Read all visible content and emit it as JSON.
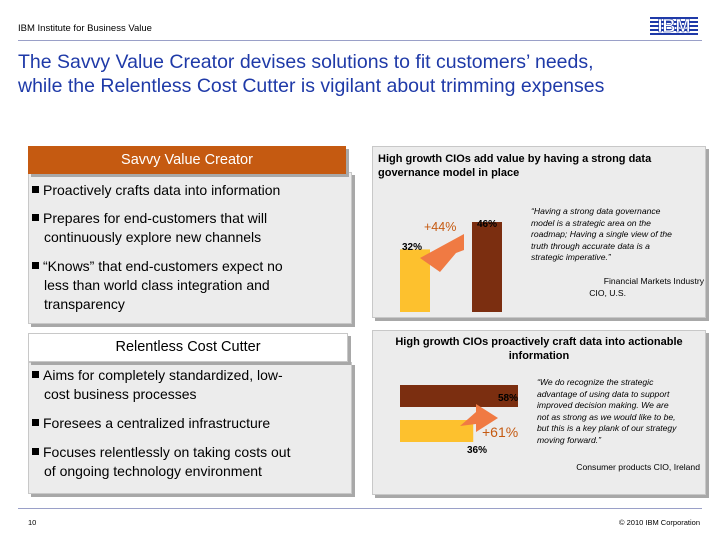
{
  "header": {
    "org": "IBM Institute for Business Value",
    "logo": "IBM"
  },
  "title": {
    "line1": "The Savvy Value Creator devises solutions to fit customers’ needs,",
    "line2": "while the Relentless Cost Cutter is vigilant about trimming expenses"
  },
  "savvy": {
    "heading": "Savvy Value Creator",
    "bullets": [
      {
        "l1": "Proactively crafts data into information",
        "l2": "",
        "l3": ""
      },
      {
        "l1": "Prepares for end-customers that will",
        "l2": "continuously explore new channels",
        "l3": ""
      },
      {
        "l1": "“Knows” that end-customers expect no",
        "l2": "less than world class integration and",
        "l3": "transparency"
      }
    ]
  },
  "cutter": {
    "heading": "Relentless Cost Cutter",
    "bullets": [
      {
        "l1": "Aims for completely standardized, low-",
        "l2": "cost business processes"
      },
      {
        "l1": "Foresees a centralized infrastructure",
        "l2": ""
      },
      {
        "l1": "Focuses relentlessly on taking costs out",
        "l2": "of ongoing technology environment"
      }
    ]
  },
  "panel_top": {
    "heading_l1": "High growth CIOs add value by having a strong data",
    "heading_l2": "governance model in place",
    "growth": "+44%",
    "low_value_label": "32%",
    "high_value_label": "46%",
    "quote": [
      "“Having a strong data governance",
      "model is a strategic area on the",
      "roadmap; Having a single view of the",
      "truth through accurate data is a",
      "strategic imperative.”"
    ],
    "attribution_l1": "Financial Markets Industry",
    "attribution_l2": "CIO, U.S."
  },
  "panel_bottom": {
    "heading_l1": "High growth CIOs proactively craft data into actionable",
    "heading_l2": "information",
    "growth": "+61%",
    "low_value_label": "36%",
    "high_value_label": "58%",
    "quote": [
      "“We do recognize the strategic",
      "advantage of using data to support",
      "improved decision making. We are",
      "not as strong as we would like to be,",
      "but this is a key plank of our strategy",
      "moving forward.”"
    ],
    "attribution": "Consumer products CIO, Ireland"
  },
  "footer": {
    "page": "10",
    "copyright": "© 2010 IBM Corporation"
  },
  "colors": {
    "title": "#1f3aa8",
    "orange": "#c55a11",
    "yellow": "#fdc12e",
    "brown": "#7b2e10",
    "panel": "#ececec"
  },
  "chart_data": [
    {
      "type": "bar",
      "title": "High growth CIOs add value by having a strong data governance model in place",
      "categories": [
        "",
        ""
      ],
      "values": [
        32,
        46
      ],
      "annotations": [
        "+44%"
      ]
    },
    {
      "type": "bar",
      "title": "High growth CIOs proactively craft data into actionable information",
      "categories": [
        "",
        ""
      ],
      "values": [
        36,
        58
      ],
      "annotations": [
        "+61%"
      ],
      "orientation": "horizontal"
    }
  ]
}
